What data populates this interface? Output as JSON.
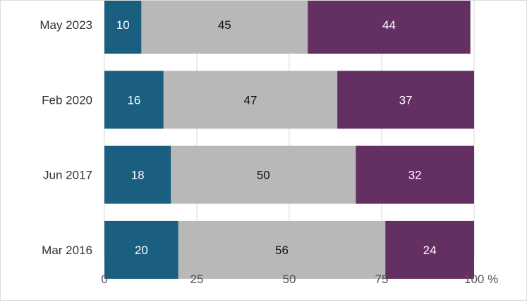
{
  "chart_data": {
    "type": "bar",
    "orientation": "horizontal",
    "stacked": true,
    "categories": [
      "May 2023",
      "Feb 2020",
      "Jun 2017",
      "Mar 2016"
    ],
    "series": [
      {
        "values": [
          10,
          16,
          18,
          20
        ],
        "color": "#1a5e80",
        "label_color": "#ffffff"
      },
      {
        "values": [
          45,
          47,
          50,
          56
        ],
        "color": "#b8b8b8",
        "label_color": "#111111"
      },
      {
        "values": [
          44,
          37,
          32,
          24
        ],
        "color": "#642f62",
        "label_color": "#ffffff"
      }
    ],
    "xlim": [
      0,
      100
    ],
    "xticks": [
      "0",
      "25",
      "50",
      "75",
      "100 %"
    ],
    "grid": true,
    "title": "",
    "xlabel": "",
    "ylabel": ""
  }
}
